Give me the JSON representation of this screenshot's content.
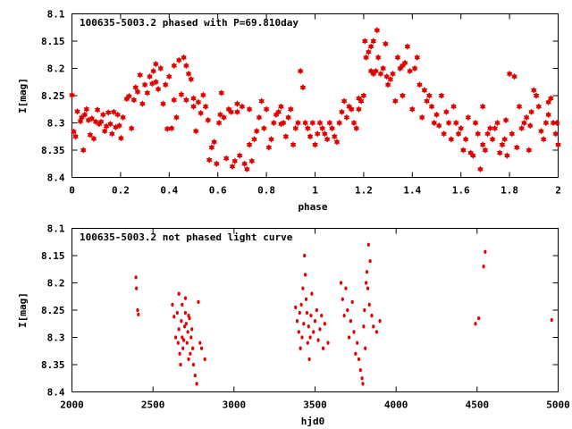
{
  "chart_data": [
    {
      "type": "scatter",
      "title": "100635-5003.2 phased with P=69.810day",
      "xlabel": "phase",
      "ylabel": "I[mag]",
      "xlim": [
        0,
        2
      ],
      "ylim": [
        8.1,
        8.4
      ],
      "y_inverted": true,
      "grid": false,
      "color": "#e00000",
      "marker": "filled-star",
      "x_ticks": [
        "0",
        "0.2",
        "0.4",
        "0.6",
        "0.8",
        "1",
        "1.2",
        "1.4",
        "1.6",
        "1.8",
        "2"
      ],
      "y_ticks": [
        "8.1",
        "8.15",
        "8.2",
        "8.25",
        "8.3",
        "8.35",
        "8.4"
      ],
      "points": [
        [
          0.0,
          8.249
        ],
        [
          0.007,
          8.316
        ],
        [
          0.015,
          8.325
        ],
        [
          0.022,
          8.279
        ],
        [
          0.035,
          8.297
        ],
        [
          0.04,
          8.29
        ],
        [
          0.047,
          8.35
        ],
        [
          0.053,
          8.285
        ],
        [
          0.06,
          8.275
        ],
        [
          0.068,
          8.295
        ],
        [
          0.075,
          8.322
        ],
        [
          0.082,
          8.292
        ],
        [
          0.09,
          8.329
        ],
        [
          0.098,
          8.298
        ],
        [
          0.105,
          8.276
        ],
        [
          0.112,
          8.302
        ],
        [
          0.12,
          8.298
        ],
        [
          0.128,
          8.285
        ],
        [
          0.135,
          8.315
        ],
        [
          0.142,
          8.306
        ],
        [
          0.15,
          8.281
        ],
        [
          0.158,
          8.302
        ],
        [
          0.165,
          8.32
        ],
        [
          0.172,
          8.28
        ],
        [
          0.18,
          8.308
        ],
        [
          0.188,
          8.285
        ],
        [
          0.195,
          8.305
        ],
        [
          0.202,
          8.328
        ],
        [
          0.21,
          8.29
        ],
        [
          0.225,
          8.256
        ],
        [
          0.235,
          8.251
        ],
        [
          0.245,
          8.31
        ],
        [
          0.255,
          8.258
        ],
        [
          0.262,
          8.235
        ],
        [
          0.27,
          8.243
        ],
        [
          0.28,
          8.212
        ],
        [
          0.29,
          8.265
        ],
        [
          0.3,
          8.23
        ],
        [
          0.31,
          8.245
        ],
        [
          0.32,
          8.215
        ],
        [
          0.335,
          8.205
        ],
        [
          0.345,
          8.225
        ],
        [
          0.355,
          8.238
        ],
        [
          0.365,
          8.2
        ],
        [
          0.375,
          8.265
        ],
        [
          0.385,
          8.23
        ],
        [
          0.392,
          8.311
        ],
        [
          0.4,
          8.215
        ],
        [
          0.41,
          8.31
        ],
        [
          0.42,
          8.258
        ],
        [
          0.43,
          8.29
        ],
        [
          0.44,
          8.185
        ],
        [
          0.45,
          8.248
        ],
        [
          0.46,
          8.18
        ],
        [
          0.47,
          8.195
        ],
        [
          0.48,
          8.21
        ],
        [
          0.49,
          8.22
        ],
        [
          0.5,
          8.27
        ],
        [
          0.51,
          8.315
        ],
        [
          0.52,
          8.262
        ],
        [
          0.53,
          8.282
        ],
        [
          0.54,
          8.249
        ],
        [
          0.55,
          8.27
        ],
        [
          0.56,
          8.295
        ],
        [
          0.565,
          8.368
        ],
        [
          0.575,
          8.345
        ],
        [
          0.585,
          8.335
        ],
        [
          0.595,
          8.375
        ],
        [
          0.605,
          8.3
        ],
        [
          0.615,
          8.245
        ],
        [
          0.625,
          8.29
        ],
        [
          0.635,
          8.365
        ],
        [
          0.645,
          8.275
        ],
        [
          0.655,
          8.28
        ],
        [
          0.66,
          8.38
        ],
        [
          0.67,
          8.37
        ],
        [
          0.68,
          8.265
        ],
        [
          0.69,
          8.36
        ],
        [
          0.7,
          8.27
        ],
        [
          0.71,
          8.375
        ],
        [
          0.72,
          8.385
        ],
        [
          0.73,
          8.34
        ],
        [
          0.74,
          8.37
        ],
        [
          0.75,
          8.33
        ],
        [
          0.76,
          8.315
        ],
        [
          0.77,
          8.29
        ],
        [
          0.78,
          8.26
        ],
        [
          0.79,
          8.31
        ],
        [
          0.8,
          8.275
        ],
        [
          0.81,
          8.345
        ],
        [
          0.82,
          8.33
        ],
        [
          0.83,
          8.3
        ],
        [
          0.84,
          8.285
        ],
        [
          0.85,
          8.28
        ],
        [
          0.86,
          8.27
        ],
        [
          0.87,
          8.3
        ],
        [
          0.88,
          8.325
        ],
        [
          0.89,
          8.29
        ],
        [
          0.9,
          8.275
        ],
        [
          0.91,
          8.34
        ],
        [
          0.92,
          8.31
        ],
        [
          0.93,
          8.3
        ],
        [
          0.94,
          8.205
        ],
        [
          0.95,
          8.235
        ],
        [
          0.96,
          8.3
        ],
        [
          0.97,
          8.31
        ],
        [
          0.98,
          8.325
        ],
        [
          0.99,
          8.3
        ],
        [
          1.0,
          8.34
        ],
        [
          1.01,
          8.32
        ],
        [
          1.02,
          8.3
        ],
        [
          1.03,
          8.31
        ],
        [
          1.04,
          8.32
        ],
        [
          1.05,
          8.33
        ],
        [
          1.06,
          8.3
        ],
        [
          1.07,
          8.31
        ],
        [
          1.08,
          8.325
        ],
        [
          1.09,
          8.335
        ],
        [
          1.1,
          8.3
        ],
        [
          1.11,
          8.28
        ],
        [
          1.12,
          8.26
        ],
        [
          1.13,
          8.29
        ],
        [
          1.14,
          8.27
        ],
        [
          1.15,
          8.275
        ],
        [
          1.16,
          8.3
        ],
        [
          1.17,
          8.31
        ],
        [
          1.18,
          8.275
        ],
        [
          1.19,
          8.26
        ],
        [
          1.2,
          8.25
        ],
        [
          1.205,
          8.15
        ],
        [
          1.21,
          8.18
        ],
        [
          1.22,
          8.17
        ],
        [
          1.23,
          8.16
        ],
        [
          1.24,
          8.15
        ],
        [
          1.25,
          8.205
        ],
        [
          1.255,
          8.13
        ],
        [
          1.26,
          8.18
        ],
        [
          1.27,
          8.21
        ],
        [
          1.28,
          8.2
        ],
        [
          1.29,
          8.155
        ],
        [
          1.3,
          8.23
        ],
        [
          1.31,
          8.22
        ],
        [
          1.32,
          8.21
        ],
        [
          1.33,
          8.26
        ],
        [
          1.34,
          8.18
        ],
        [
          1.35,
          8.2
        ],
        [
          1.36,
          8.25
        ],
        [
          1.37,
          8.19
        ],
        [
          1.38,
          8.16
        ],
        [
          1.39,
          8.205
        ],
        [
          1.4,
          8.275
        ],
        [
          1.41,
          8.2
        ],
        [
          1.42,
          8.18
        ],
        [
          1.43,
          8.23
        ],
        [
          1.44,
          8.29
        ],
        [
          1.45,
          8.24
        ],
        [
          1.46,
          8.26
        ],
        [
          1.47,
          8.25
        ],
        [
          1.48,
          8.27
        ],
        [
          1.49,
          8.3
        ],
        [
          1.5,
          8.285
        ],
        [
          1.51,
          8.305
        ],
        [
          1.52,
          8.25
        ],
        [
          1.53,
          8.32
        ],
        [
          1.54,
          8.28
        ],
        [
          1.55,
          8.3
        ],
        [
          1.56,
          8.33
        ],
        [
          1.57,
          8.27
        ],
        [
          1.58,
          8.3
        ],
        [
          1.59,
          8.32
        ],
        [
          1.6,
          8.31
        ],
        [
          1.61,
          8.35
        ],
        [
          1.62,
          8.33
        ],
        [
          1.63,
          8.29
        ],
        [
          1.64,
          8.355
        ],
        [
          1.65,
          8.36
        ],
        [
          1.66,
          8.3
        ],
        [
          1.67,
          8.32
        ],
        [
          1.68,
          8.385
        ],
        [
          1.69,
          8.34
        ],
        [
          1.7,
          8.35
        ],
        [
          1.71,
          8.32
        ],
        [
          1.72,
          8.31
        ],
        [
          1.73,
          8.33
        ],
        [
          1.74,
          8.31
        ],
        [
          1.75,
          8.3
        ],
        [
          1.76,
          8.355
        ],
        [
          1.77,
          8.34
        ],
        [
          1.78,
          8.33
        ],
        [
          1.79,
          8.36
        ],
        [
          1.8,
          8.21
        ],
        [
          1.81,
          8.32
        ],
        [
          1.82,
          8.215
        ],
        [
          1.83,
          8.345
        ],
        [
          1.84,
          8.27
        ],
        [
          1.85,
          8.31
        ],
        [
          1.86,
          8.3
        ],
        [
          1.87,
          8.29
        ],
        [
          1.88,
          8.35
        ],
        [
          1.89,
          8.28
        ],
        [
          1.9,
          8.24
        ],
        [
          1.91,
          8.25
        ],
        [
          1.92,
          8.27
        ],
        [
          1.93,
          8.315
        ],
        [
          1.94,
          8.33
        ],
        [
          1.95,
          8.3
        ],
        [
          1.96,
          8.285
        ],
        [
          1.97,
          8.255
        ],
        [
          1.98,
          8.3
        ],
        [
          1.99,
          8.32
        ],
        [
          2.0,
          8.34
        ],
        [
          0.33,
          8.228
        ],
        [
          0.345,
          8.192
        ],
        [
          0.42,
          8.195
        ],
        [
          0.47,
          8.258
        ],
        [
          0.61,
          8.285
        ],
        [
          0.68,
          8.28
        ],
        [
          0.73,
          8.275
        ],
        [
          0.86,
          8.302
        ],
        [
          1.18,
          8.255
        ],
        [
          1.23,
          8.205
        ],
        [
          1.24,
          8.21
        ],
        [
          1.295,
          8.215
        ],
        [
          1.36,
          8.195
        ],
        [
          1.69,
          8.27
        ],
        [
          1.785,
          8.295
        ],
        [
          1.885,
          8.305
        ],
        [
          1.96,
          8.262
        ],
        [
          1.995,
          8.3
        ],
        [
          0.5,
          8.255
        ]
      ]
    },
    {
      "type": "scatter",
      "title": "100635-5003.2 not phased light curve",
      "xlabel": "hjd0",
      "ylabel": "I[mag]",
      "xlim": [
        2000,
        5000
      ],
      "ylim": [
        8.1,
        8.4
      ],
      "y_inverted": true,
      "grid": false,
      "color": "#e00000",
      "marker": "small-dot",
      "x_ticks": [
        "2000",
        "2500",
        "3000",
        "3500",
        "4000",
        "4500",
        "5000"
      ],
      "y_ticks": [
        "8.1",
        "8.15",
        "8.2",
        "8.25",
        "8.3",
        "8.35",
        "8.4"
      ],
      "points": [
        [
          2395,
          8.19
        ],
        [
          2398,
          8.21
        ],
        [
          2405,
          8.25
        ],
        [
          2410,
          8.258
        ],
        [
          2620,
          8.24
        ],
        [
          2630,
          8.262
        ],
        [
          2640,
          8.3
        ],
        [
          2650,
          8.255
        ],
        [
          2655,
          8.31
        ],
        [
          2660,
          8.285
        ],
        [
          2665,
          8.33
        ],
        [
          2670,
          8.35
        ],
        [
          2675,
          8.27
        ],
        [
          2680,
          8.3
        ],
        [
          2685,
          8.32
        ],
        [
          2690,
          8.305
        ],
        [
          2695,
          8.28
        ],
        [
          2700,
          8.255
        ],
        [
          2705,
          8.275
        ],
        [
          2710,
          8.31
        ],
        [
          2715,
          8.29
        ],
        [
          2720,
          8.34
        ],
        [
          2725,
          8.265
        ],
        [
          2730,
          8.33
        ],
        [
          2735,
          8.3
        ],
        [
          2740,
          8.285
        ],
        [
          2745,
          8.32
        ],
        [
          2750,
          8.35
        ],
        [
          2760,
          8.37
        ],
        [
          2770,
          8.385
        ],
        [
          2780,
          8.235
        ],
        [
          2790,
          8.31
        ],
        [
          2800,
          8.32
        ],
        [
          2820,
          8.34
        ],
        [
          2660,
          8.22
        ],
        [
          2700,
          8.228
        ],
        [
          2680,
          8.24
        ],
        [
          2720,
          8.26
        ],
        [
          3380,
          8.245
        ],
        [
          3390,
          8.27
        ],
        [
          3400,
          8.29
        ],
        [
          3405,
          8.255
        ],
        [
          3410,
          8.32
        ],
        [
          3415,
          8.24
        ],
        [
          3420,
          8.3
        ],
        [
          3425,
          8.21
        ],
        [
          3430,
          8.275
        ],
        [
          3435,
          8.15
        ],
        [
          3440,
          8.185
        ],
        [
          3445,
          8.23
        ],
        [
          3450,
          8.255
        ],
        [
          3455,
          8.31
        ],
        [
          3460,
          8.28
        ],
        [
          3465,
          8.34
        ],
        [
          3470,
          8.3
        ],
        [
          3475,
          8.26
        ],
        [
          3480,
          8.22
        ],
        [
          3490,
          8.29
        ],
        [
          3500,
          8.27
        ],
        [
          3510,
          8.25
        ],
        [
          3520,
          8.305
        ],
        [
          3530,
          8.285
        ],
        [
          3540,
          8.26
        ],
        [
          3550,
          8.32
        ],
        [
          3560,
          8.275
        ],
        [
          3580,
          8.31
        ],
        [
          3660,
          8.2
        ],
        [
          3670,
          8.23
        ],
        [
          3680,
          8.26
        ],
        [
          3690,
          8.21
        ],
        [
          3700,
          8.25
        ],
        [
          3710,
          8.3
        ],
        [
          3720,
          8.27
        ],
        [
          3730,
          8.235
        ],
        [
          3740,
          8.29
        ],
        [
          3750,
          8.33
        ],
        [
          3760,
          8.31
        ],
        [
          3770,
          8.34
        ],
        [
          3780,
          8.36
        ],
        [
          3790,
          8.375
        ],
        [
          3795,
          8.385
        ],
        [
          3800,
          8.28
        ],
        [
          3805,
          8.25
        ],
        [
          3810,
          8.32
        ],
        [
          3815,
          8.2
        ],
        [
          3820,
          8.18
        ],
        [
          3825,
          8.21
        ],
        [
          3830,
          8.13
        ],
        [
          3835,
          8.24
        ],
        [
          3840,
          8.16
        ],
        [
          3850,
          8.26
        ],
        [
          3860,
          8.28
        ],
        [
          3880,
          8.29
        ],
        [
          3900,
          8.27
        ],
        [
          4490,
          8.275
        ],
        [
          4510,
          8.265
        ],
        [
          4540,
          8.17
        ],
        [
          4550,
          8.143
        ],
        [
          4960,
          8.268
        ]
      ]
    }
  ]
}
